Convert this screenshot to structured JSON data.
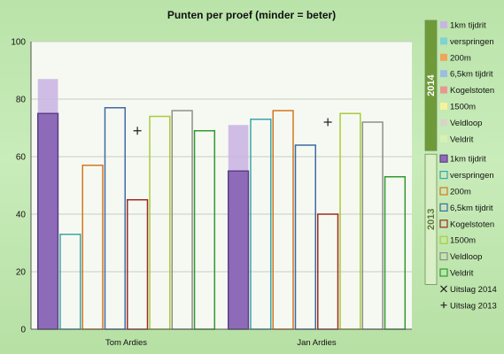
{
  "chart_data": {
    "type": "bar",
    "title": "Punten per proef (minder = beter)",
    "categories": [
      "Tom Ardies",
      "Jan Ardies"
    ],
    "ylim": [
      0,
      100
    ],
    "yticks": [
      0,
      20,
      40,
      60,
      80,
      100
    ],
    "grid": true,
    "legend_position": "right",
    "legend_groups": [
      {
        "label": "2014",
        "color": "#6f9a3a"
      },
      {
        "label": "2013",
        "color": "#d9efc6"
      }
    ],
    "series": [
      {
        "name": "1km tijdrit",
        "year": "2014",
        "values": [
          87,
          71
        ],
        "color": "#c9b3e3"
      },
      {
        "name": "verspringen",
        "year": "2014",
        "values": [
          null,
          null
        ],
        "color": "#7fd3d0"
      },
      {
        "name": "200m",
        "year": "2014",
        "values": [
          null,
          null
        ],
        "color": "#f0a35a"
      },
      {
        "name": "6,5km tijdrit",
        "year": "2014",
        "values": [
          null,
          null
        ],
        "color": "#9cbde0"
      },
      {
        "name": "Kogelstoten",
        "year": "2014",
        "values": [
          null,
          null
        ],
        "color": "#e8978f"
      },
      {
        "name": "1500m",
        "year": "2014",
        "values": [
          null,
          null
        ],
        "color": "#f7f29a"
      },
      {
        "name": "Veldloop",
        "year": "2014",
        "values": [
          null,
          null
        ],
        "color": "#d6d6c8"
      },
      {
        "name": "Veldrit",
        "year": "2014",
        "values": [
          null,
          null
        ],
        "color": "#d9f0b3"
      },
      {
        "name": "1km tijdrit",
        "year": "2013",
        "values": [
          75,
          55
        ],
        "color": "#8e6bb8",
        "border": "#5b3f87"
      },
      {
        "name": "verspringen",
        "year": "2013",
        "values": [
          33,
          73
        ],
        "color": "none",
        "border": "#3aa6a9"
      },
      {
        "name": "200m",
        "year": "2013",
        "values": [
          57,
          76
        ],
        "color": "none",
        "border": "#d4771e"
      },
      {
        "name": "6,5km tijdrit",
        "year": "2013",
        "values": [
          77,
          64
        ],
        "color": "none",
        "border": "#3f6aa5"
      },
      {
        "name": "Kogelstoten",
        "year": "2013",
        "values": [
          45,
          40
        ],
        "color": "none",
        "border": "#9d2b23"
      },
      {
        "name": "1500m",
        "year": "2013",
        "values": [
          74,
          75
        ],
        "color": "none",
        "border": "#a9cc39"
      },
      {
        "name": "Veldloop",
        "year": "2013",
        "values": [
          76,
          72
        ],
        "color": "none",
        "border": "#8f8f86"
      },
      {
        "name": "Veldrit",
        "year": "2013",
        "values": [
          69,
          53
        ],
        "color": "none",
        "border": "#2f9a2f"
      }
    ],
    "markers": [
      {
        "name": "Uitslag 2014",
        "symbol": "×",
        "values": [
          null,
          null
        ]
      },
      {
        "name": "Uitslag 2013",
        "symbol": "+",
        "values": [
          69,
          72
        ]
      }
    ]
  }
}
